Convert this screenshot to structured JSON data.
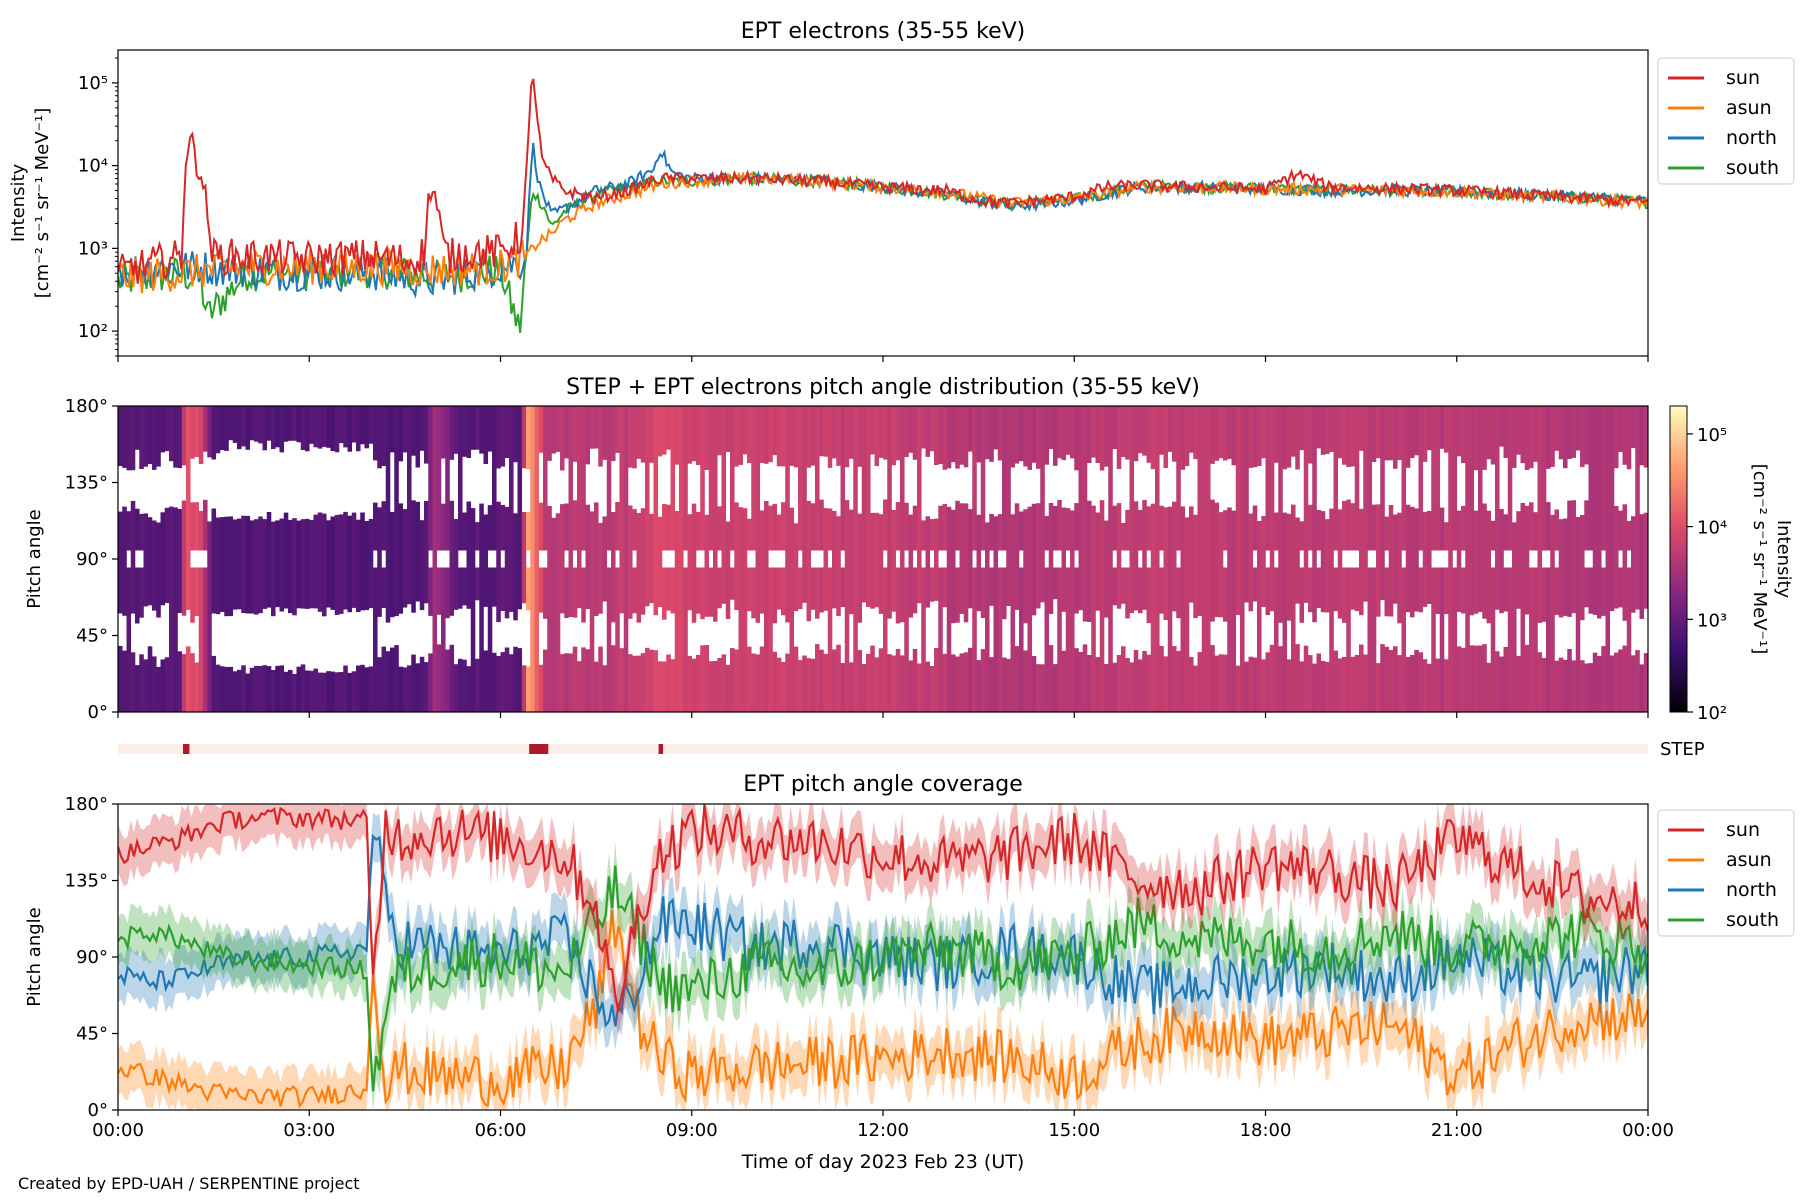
{
  "footer": {
    "credit": "Created by EPD-UAH / SERPENTINE project"
  },
  "series_colors": {
    "sun": "#d62728",
    "asun": "#ff7f0e",
    "north": "#1f77b4",
    "south": "#2ca02c"
  },
  "colormap": [
    "#000004",
    "#3b0f70",
    "#8c2981",
    "#de4968",
    "#fe9f6d",
    "#fcfdbf"
  ],
  "chart_data": [
    {
      "id": "ept-intensity",
      "type": "line",
      "title": "EPT electrons (35-55 keV)",
      "ylabel_line1": "Intensity",
      "ylabel_line2": "[cm⁻² s⁻¹ sr⁻¹ MeV⁻¹]",
      "yscale": "log",
      "ylim": [
        50,
        250000
      ],
      "yticks": [
        {
          "value": 100,
          "label": "10²"
        },
        {
          "value": 1000,
          "label": "10³"
        },
        {
          "value": 10000,
          "label": "10⁴"
        },
        {
          "value": 100000,
          "label": "10⁵"
        }
      ],
      "xlim": [
        0,
        24
      ],
      "legend": "outside-right-top",
      "series": [
        {
          "name": "sun",
          "x": [
            0,
            0.5,
            1.0,
            1.05,
            1.1,
            1.2,
            1.3,
            1.4,
            1.5,
            2.0,
            3.0,
            4.0,
            4.6,
            4.8,
            4.9,
            5.0,
            5.1,
            5.2,
            5.5,
            6.0,
            6.35,
            6.45,
            6.5,
            6.55,
            6.65,
            6.8,
            7.0,
            7.5,
            8.0,
            8.5,
            9.0,
            10,
            11,
            12,
            13,
            13.5,
            14,
            15,
            15.5,
            16,
            17,
            18,
            18.5,
            19,
            20,
            21,
            22,
            23,
            24
          ],
          "y": [
            500,
            650,
            800,
            12000,
            18000,
            15000,
            9000,
            2500,
            800,
            800,
            750,
            800,
            700,
            900,
            6000,
            3500,
            1000,
            800,
            900,
            900,
            1500,
            30000,
            170000,
            60000,
            12000,
            7000,
            5000,
            4000,
            5000,
            7000,
            7000,
            7000,
            6500,
            5500,
            5000,
            3800,
            3500,
            4200,
            5500,
            5800,
            5500,
            5200,
            8000,
            5500,
            5300,
            5000,
            4500,
            4000,
            3600
          ]
        },
        {
          "name": "asun",
          "x": [
            0,
            1,
            2,
            3,
            4,
            5,
            6,
            6.4,
            6.6,
            6.8,
            7.0,
            7.5,
            8.0,
            8.5,
            9,
            10,
            11,
            12,
            13,
            14,
            15,
            16,
            17,
            18,
            19,
            20,
            21,
            22,
            23,
            24
          ],
          "y": [
            450,
            500,
            600,
            600,
            600,
            550,
            600,
            800,
            1200,
            1500,
            2200,
            3500,
            4500,
            6000,
            6500,
            7000,
            6500,
            5500,
            4800,
            3500,
            4000,
            5500,
            5500,
            5200,
            5200,
            5000,
            4800,
            4300,
            4000,
            3500
          ]
        },
        {
          "name": "north",
          "x": [
            0,
            1,
            2,
            3,
            4,
            5,
            6,
            6.4,
            6.5,
            6.6,
            6.8,
            7.0,
            7.5,
            8.0,
            8.4,
            8.5,
            8.7,
            9,
            10,
            11,
            12,
            13,
            14,
            15,
            16,
            17,
            18,
            19,
            20,
            21,
            22,
            23,
            24
          ],
          "y": [
            550,
            600,
            550,
            500,
            500,
            400,
            600,
            700,
            20000,
            6000,
            2500,
            3000,
            5000,
            6000,
            9000,
            16000,
            8000,
            7000,
            7000,
            6500,
            5500,
            4500,
            3200,
            3800,
            5500,
            5500,
            5300,
            5000,
            5000,
            4800,
            4500,
            4200,
            3700
          ]
        },
        {
          "name": "south",
          "x": [
            0,
            1,
            1.3,
            1.4,
            2,
            3,
            4,
            5,
            6,
            6.3,
            6.4,
            6.5,
            6.7,
            6.8,
            7.0,
            7.5,
            8.0,
            8.5,
            9,
            10,
            11,
            12,
            13,
            14,
            15,
            16,
            17,
            18,
            19,
            20,
            21,
            22,
            23,
            24
          ],
          "y": [
            400,
            500,
            400,
            150,
            500,
            500,
            550,
            450,
            550,
            100,
            700,
            5000,
            3000,
            1800,
            2800,
            4500,
            5500,
            6500,
            6500,
            7000,
            6500,
            5500,
            4500,
            3300,
            3900,
            5500,
            5500,
            5300,
            5000,
            5000,
            4800,
            4400,
            4100,
            3600
          ]
        }
      ]
    },
    {
      "id": "pad-spectrogram",
      "type": "heatmap",
      "title": "STEP + EPT electrons pitch angle distribution (35-55 keV)",
      "ylabel": "Pitch angle",
      "ylim": [
        0,
        180
      ],
      "yticks": [
        {
          "value": 0,
          "label": "0°"
        },
        {
          "value": 45,
          "label": "45°"
        },
        {
          "value": 90,
          "label": "90°"
        },
        {
          "value": 135,
          "label": "135°"
        },
        {
          "value": 180,
          "label": "180°"
        }
      ],
      "xlim": [
        0,
        24
      ],
      "colorbar": {
        "label": "Intensity",
        "units": "[cm⁻² s⁻¹ sr⁻¹ MeV⁻¹]",
        "scale": "log",
        "range": [
          100,
          200000
        ],
        "ticks": [
          {
            "value": 100,
            "label": "10²"
          },
          {
            "value": 1000,
            "label": "10³"
          },
          {
            "value": 10000,
            "label": "10⁴"
          },
          {
            "value": 100000,
            "label": "10⁵"
          }
        ]
      },
      "intensity_profile": {
        "x": [
          0,
          1,
          1.05,
          1.3,
          1.5,
          3,
          4.8,
          5.0,
          5.3,
          6.3,
          6.45,
          6.55,
          6.7,
          7.0,
          8.0,
          8.5,
          9,
          12,
          14,
          16,
          18,
          20,
          22,
          24
        ],
        "y": [
          700,
          800,
          12000,
          8000,
          700,
          700,
          700,
          3500,
          800,
          800,
          60000,
          20000,
          5000,
          4500,
          5500,
          9000,
          7000,
          6000,
          4000,
          5500,
          5300,
          5000,
          4500,
          3800
        ]
      }
    },
    {
      "id": "step-flag",
      "type": "heatmap",
      "label": "STEP",
      "flag_intervals": [
        [
          1.02,
          1.12
        ],
        [
          6.45,
          6.75
        ],
        [
          8.48,
          8.55
        ]
      ]
    },
    {
      "id": "ept-coverage",
      "type": "line",
      "title": "EPT pitch angle coverage",
      "ylabel": "Pitch angle",
      "xlabel": "Time of day 2023 Feb 23 (UT)",
      "ylim": [
        0,
        180
      ],
      "yticks": [
        {
          "value": 0,
          "label": "0°"
        },
        {
          "value": 45,
          "label": "45°"
        },
        {
          "value": 90,
          "label": "90°"
        },
        {
          "value": 135,
          "label": "135°"
        },
        {
          "value": 180,
          "label": "180°"
        }
      ],
      "xlim": [
        0,
        24
      ],
      "xticks": [
        {
          "value": 0,
          "label": "00:00"
        },
        {
          "value": 3,
          "label": "03:00"
        },
        {
          "value": 6,
          "label": "06:00"
        },
        {
          "value": 9,
          "label": "09:00"
        },
        {
          "value": 12,
          "label": "12:00"
        },
        {
          "value": 15,
          "label": "15:00"
        },
        {
          "value": 18,
          "label": "18:00"
        },
        {
          "value": 21,
          "label": "21:00"
        },
        {
          "value": 24,
          "label": "00:00"
        }
      ],
      "legend": "outside-right-top",
      "series": [
        {
          "name": "sun",
          "x": [
            0,
            0.5,
            1,
            1.5,
            2,
            3,
            3.9,
            4.0,
            4.2,
            4.4,
            5,
            6,
            7,
            7.5,
            7.8,
            8.2,
            8.5,
            9,
            10,
            11,
            12,
            13,
            14,
            15,
            16,
            17,
            18,
            19,
            20,
            21,
            22,
            23,
            24
          ],
          "y": [
            150,
            155,
            160,
            168,
            172,
            172,
            170,
            70,
            170,
            160,
            165,
            160,
            150,
            120,
            60,
            120,
            150,
            165,
            160,
            158,
            150,
            145,
            150,
            160,
            135,
            130,
            145,
            140,
            130,
            160,
            140,
            125,
            120
          ]
        },
        {
          "name": "asun",
          "x": [
            0,
            0.5,
            1,
            1.5,
            2,
            3,
            3.9,
            4.0,
            4.2,
            4.4,
            5,
            6,
            7,
            7.5,
            7.8,
            8.2,
            8.5,
            9,
            10,
            11,
            12,
            13,
            14,
            15,
            16,
            17,
            18,
            19,
            20,
            21,
            22,
            23,
            24
          ],
          "y": [
            25,
            20,
            15,
            10,
            8,
            8,
            12,
            90,
            10,
            25,
            20,
            18,
            25,
            60,
            110,
            50,
            30,
            20,
            25,
            28,
            30,
            35,
            30,
            20,
            40,
            50,
            40,
            45,
            50,
            20,
            40,
            55,
            55
          ]
        },
        {
          "name": "north",
          "x": [
            0,
            0.5,
            1,
            1.5,
            2,
            3,
            3.9,
            4.0,
            4.2,
            4.4,
            5,
            6,
            7,
            7.5,
            7.8,
            8.2,
            8.5,
            9,
            10,
            11,
            12,
            13,
            14,
            15,
            16,
            17,
            18,
            19,
            20,
            21,
            22,
            23,
            24
          ],
          "y": [
            80,
            75,
            78,
            85,
            88,
            90,
            95,
            170,
            120,
            100,
            95,
            90,
            100,
            70,
            50,
            80,
            110,
            110,
            95,
            100,
            90,
            85,
            95,
            90,
            70,
            75,
            80,
            85,
            75,
            90,
            80,
            75,
            85
          ]
        },
        {
          "name": "south",
          "x": [
            0,
            0.5,
            1,
            1.5,
            2,
            3,
            3.9,
            4.0,
            4.2,
            4.4,
            5,
            6,
            7,
            7.5,
            7.8,
            8.2,
            8.5,
            9,
            10,
            11,
            12,
            13,
            14,
            15,
            16,
            17,
            18,
            19,
            20,
            21,
            22,
            23,
            24
          ],
          "y": [
            100,
            105,
            100,
            92,
            88,
            85,
            82,
            10,
            60,
            80,
            85,
            90,
            80,
            110,
            130,
            100,
            75,
            70,
            85,
            80,
            90,
            95,
            85,
            90,
            110,
            100,
            100,
            95,
            105,
            95,
            100,
            105,
            95
          ]
        }
      ]
    }
  ]
}
